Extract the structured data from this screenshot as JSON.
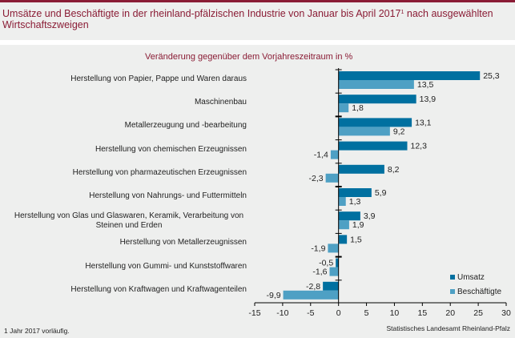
{
  "header": {
    "title": "Umsätze und Beschäftigte in der rheinland-pfälzischen Industrie von Januar bis April 2017",
    "title_sup": "1",
    "title_rest": " nach ausgewählten Wirtschaftszweigen"
  },
  "chart_data": {
    "type": "bar",
    "orientation": "horizontal",
    "title": "Umsätze und Beschäftigte in der rheinland-pfälzischen Industrie von Januar bis April 2017¹ nach ausgewählten Wirtschaftszweigen",
    "subtitle": "Veränderung gegenüber dem Vorjahreszeitraum in %",
    "categories": [
      "Herstellung von Papier, Pappe und Waren daraus",
      "Maschinenbau",
      "Metallerzeugung und -bearbeitung",
      "Herstellung von chemischen Erzeugnissen",
      "Herstellung von pharmazeutischen Erzeugnissen",
      "Herstellung von Nahrungs- und Futtermitteln",
      "Herstellung von Glas und Glaswaren, Keramik, Verarbeitung von Steinen und Erden",
      "Herstellung von Metallerzeugnissen",
      "Herstellung von Gummi- und Kunststoffwaren",
      "Herstellung von Kraftwagen und Kraftwagenteilen"
    ],
    "series": [
      {
        "name": "Umsatz",
        "color": "#0070a0",
        "values": [
          25.3,
          13.9,
          13.1,
          12.3,
          8.2,
          5.9,
          3.9,
          1.5,
          -0.5,
          -2.8
        ],
        "labels": [
          "25,3",
          "13,9",
          "13,1",
          "12,3",
          "8,2",
          "5,9",
          "3,9",
          "1,5",
          "-0,5",
          "-2,8"
        ]
      },
      {
        "name": "Beschäftigte",
        "color": "#4ea0c4",
        "values": [
          13.5,
          1.8,
          9.2,
          -1.4,
          -2.3,
          1.3,
          1.9,
          -1.9,
          -1.6,
          -9.9
        ],
        "labels": [
          "13,5",
          "1,8",
          "9,2",
          "-1,4",
          "-2,3",
          "1,3",
          "1,9",
          "-1,9",
          "-1,6",
          "-9,9"
        ]
      }
    ],
    "xlim": [
      -15,
      30
    ],
    "xticks": [
      -15,
      -10,
      -5,
      0,
      5,
      10,
      15,
      20,
      25,
      30
    ],
    "xtick_labels": [
      "-15",
      "-10",
      "-5",
      "0",
      "5",
      "10",
      "15",
      "20",
      "25",
      "30"
    ],
    "xlabel": "",
    "ylabel": "",
    "grid": false,
    "legend_position": "bottom-right"
  },
  "legend": {
    "items": [
      {
        "label": "Umsatz",
        "color": "#0070a0"
      },
      {
        "label": "Beschäftigte",
        "color": "#4ea0c4"
      }
    ]
  },
  "footer": {
    "footnote": "1 Jahr 2017 vorläufig.",
    "source": "Statistisches Landesamt Rheinland-Pfalz"
  }
}
